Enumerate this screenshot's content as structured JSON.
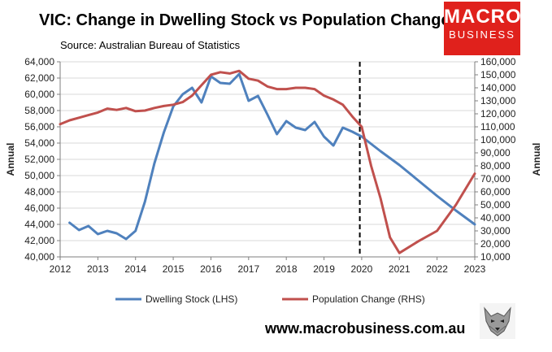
{
  "header": {
    "title": "VIC: Change in Dwelling Stock vs Population Change",
    "source": "Source: Australian Bureau of Statistics",
    "logo_line1": "MACRO",
    "logo_line2": "BUSINESS"
  },
  "footer": {
    "website": "www.macrobusiness.com.au"
  },
  "colors": {
    "dwelling": "#4f81bd",
    "population": "#c0504d",
    "logo_bg": "#e0211c"
  },
  "chart_data": {
    "type": "line",
    "title": "VIC: Change in Dwelling Stock vs Population Change",
    "xlabel": "",
    "xlim": [
      2012,
      2023
    ],
    "x_ticks": [
      2012,
      2013,
      2014,
      2015,
      2016,
      2017,
      2018,
      2019,
      2020,
      2021,
      2022,
      2023
    ],
    "x_tick_labels": [
      "2012",
      "2013",
      "2014",
      "2015",
      "2016",
      "2017",
      "2018",
      "2019",
      "2020",
      "2021",
      "2022",
      "2023"
    ],
    "ylabel_left": "Annual",
    "ylabel_right": "Annual",
    "ylim_left": [
      40000,
      64000
    ],
    "ylim_right": [
      10000,
      160000
    ],
    "y_left_ticks": [
      40000,
      42000,
      44000,
      46000,
      48000,
      50000,
      52000,
      54000,
      56000,
      58000,
      60000,
      62000,
      64000
    ],
    "y_left_tick_labels": [
      "40,000",
      "42,000",
      "44,000",
      "46,000",
      "48,000",
      "50,000",
      "52,000",
      "54,000",
      "56,000",
      "58,000",
      "60,000",
      "62,000",
      "64,000"
    ],
    "y_right_ticks": [
      10000,
      20000,
      30000,
      40000,
      50000,
      60000,
      70000,
      80000,
      90000,
      100000,
      110000,
      120000,
      130000,
      140000,
      150000,
      160000
    ],
    "y_right_tick_labels": [
      "10,000",
      "20,000",
      "30,000",
      "40,000",
      "50,000",
      "60,000",
      "70,000",
      "80,000",
      "90,000",
      "100,000",
      "110,000",
      "120,000",
      "130,000",
      "140,000",
      "150,000",
      "160,000"
    ],
    "grid": true,
    "vline_x": 2019.95,
    "legend_position": "bottom",
    "series": [
      {
        "name": "Dwelling Stock (LHS)",
        "axis": "left",
        "x": [
          2012.25,
          2012.5,
          2012.75,
          2013.0,
          2013.25,
          2013.5,
          2013.75,
          2014.0,
          2014.25,
          2014.5,
          2014.75,
          2015.0,
          2015.25,
          2015.5,
          2015.75,
          2016.0,
          2016.25,
          2016.5,
          2016.75,
          2017.0,
          2017.25,
          2017.5,
          2017.75,
          2018.0,
          2018.25,
          2018.5,
          2018.75,
          2019.0,
          2019.25,
          2019.5,
          2019.75,
          2020.0,
          2020.5,
          2021.0,
          2021.5,
          2022.0,
          2022.5,
          2023.0
        ],
        "values": [
          44200,
          43300,
          43800,
          42800,
          43200,
          42900,
          42200,
          43200,
          46800,
          51500,
          55300,
          58500,
          60000,
          60800,
          59000,
          62200,
          61400,
          61300,
          62500,
          59200,
          59800,
          57500,
          55100,
          56700,
          55900,
          55600,
          56600,
          54800,
          53700,
          55900,
          55400,
          54800,
          53000,
          51300,
          49400,
          47500,
          45700,
          44000
        ]
      },
      {
        "name": "Population Change (RHS)",
        "axis": "right",
        "x": [
          2012.0,
          2012.25,
          2012.5,
          2012.75,
          2013.0,
          2013.25,
          2013.5,
          2013.75,
          2014.0,
          2014.25,
          2014.5,
          2014.75,
          2015.0,
          2015.25,
          2015.5,
          2015.75,
          2016.0,
          2016.25,
          2016.5,
          2016.75,
          2017.0,
          2017.25,
          2017.5,
          2017.75,
          2018.0,
          2018.25,
          2018.5,
          2018.75,
          2019.0,
          2019.25,
          2019.5,
          2019.75,
          2020.0,
          2020.25,
          2020.5,
          2020.75,
          2021.0,
          2021.5,
          2022.0,
          2022.5,
          2023.0
        ],
        "values": [
          112000,
          115000,
          117000,
          119000,
          121000,
          124000,
          123000,
          124500,
          122000,
          122500,
          124500,
          126000,
          127000,
          129000,
          134000,
          142000,
          150000,
          152000,
          151000,
          153000,
          147000,
          145500,
          141000,
          139000,
          139000,
          140000,
          140000,
          139000,
          134000,
          131000,
          127000,
          118000,
          110000,
          80000,
          55000,
          25000,
          13000,
          22000,
          30000,
          50000,
          74000
        ]
      }
    ]
  }
}
